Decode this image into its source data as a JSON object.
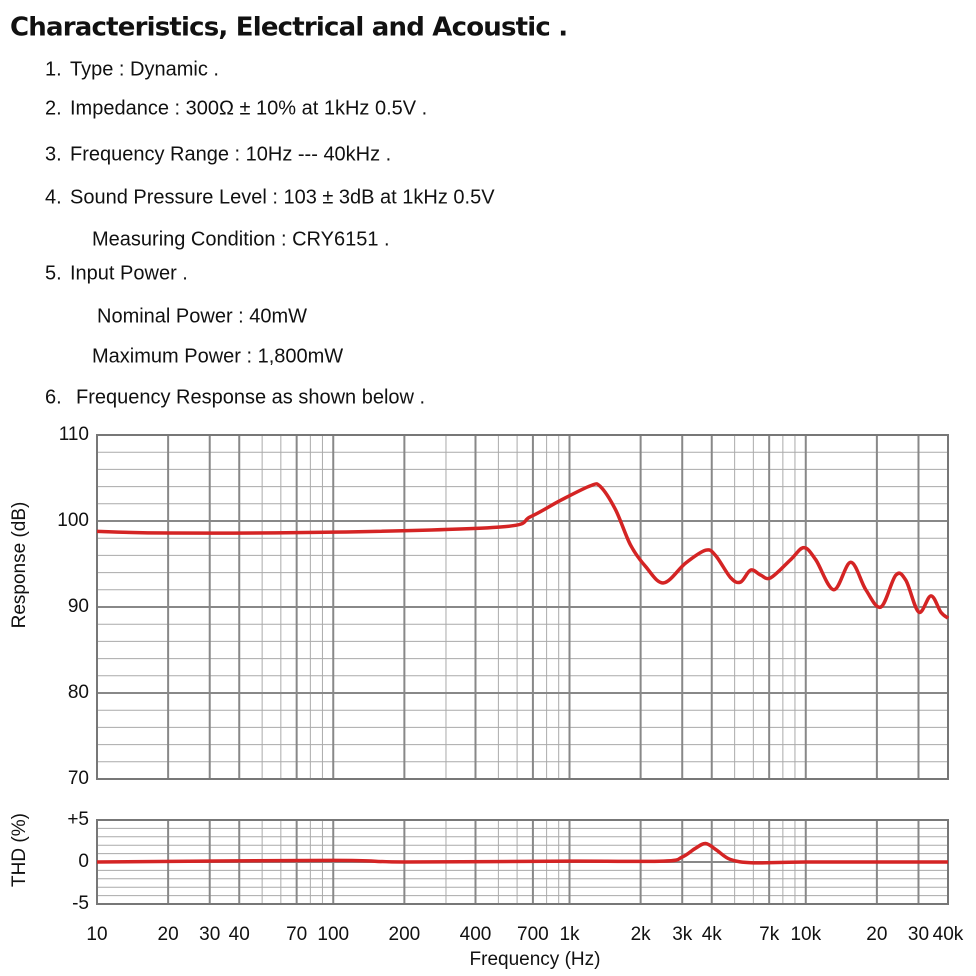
{
  "title": "Characteristics, Electrical and Acoustic .",
  "lines": [
    {
      "number": "1.",
      "text": "Type : Dynamic ."
    },
    {
      "number": "2.",
      "text": "Impedance : 300Ω ± 10% at 1kHz 0.5V ."
    },
    {
      "number": "3.",
      "text": "Frequency Range : 10Hz --- 40kHz ."
    },
    {
      "number": "4.",
      "text": "Sound Pressure Level :  103 ± 3dB at 1kHz 0.5V"
    },
    {
      "text": "Measuring Condition : CRY6151 ."
    },
    {
      "number": "5.",
      "text": "Input Power ."
    },
    {
      "text": "Nominal Power : 40mW"
    },
    {
      "text": "Maximum Power : 1,800mW"
    },
    {
      "number": "6.",
      "text": "Frequency Response as shown below ."
    }
  ],
  "chart_data": [
    {
      "type": "line",
      "ylabel": "Response (dB)",
      "log_x": true,
      "grid": true,
      "xlim": [
        10,
        40000
      ],
      "ylim": [
        70,
        110
      ],
      "xticks": [
        10,
        20,
        30,
        40,
        70,
        100,
        200,
        400,
        700,
        1000,
        2000,
        3000,
        4000,
        7000,
        10000,
        20000,
        30000,
        40000
      ],
      "xminor": [
        10,
        20,
        30,
        40,
        50,
        60,
        70,
        80,
        90,
        100,
        200,
        300,
        400,
        500,
        600,
        700,
        800,
        900,
        1000,
        2000,
        3000,
        4000,
        5000,
        6000,
        7000,
        8000,
        9000,
        10000,
        20000,
        30000,
        40000
      ],
      "yticks": [
        70,
        80,
        90,
        100,
        110
      ],
      "yminor": [
        72,
        74,
        76,
        78,
        82,
        84,
        86,
        88,
        92,
        94,
        96,
        98,
        102,
        104,
        106,
        108
      ],
      "series": [
        {
          "color": "#d42424",
          "x": [
            10,
            20,
            100,
            510,
            684,
            917,
            1228,
            1352,
            1567,
            1813,
            2100,
            2500,
            3100,
            3770,
            4150,
            4810,
            5300,
            5850,
            6450,
            7110,
            8630,
            9810,
            11020,
            13140,
            15500,
            17960,
            20800,
            24040,
            26530,
            30100,
            33880,
            37300,
            40000
          ],
          "values": [
            98.8,
            98.6,
            98.7,
            99.3,
            100.5,
            102.4,
            104.1,
            104.0,
            101.3,
            97.2,
            94.7,
            92.8,
            95.1,
            96.6,
            96.0,
            93.4,
            92.9,
            94.3,
            93.7,
            93.4,
            95.5,
            96.9,
            95.5,
            92.0,
            95.2,
            92.0,
            90.0,
            93.7,
            93.1,
            89.4,
            91.3,
            89.4,
            88.7
          ]
        }
      ]
    },
    {
      "type": "line",
      "ylabel": "THD (%)",
      "xlabel": "Frequency (Hz)",
      "log_x": true,
      "grid": true,
      "xlim": [
        10,
        40000
      ],
      "ylim": [
        -5,
        5
      ],
      "xticks": [
        10,
        20,
        30,
        40,
        70,
        100,
        200,
        400,
        700,
        {
          "value": 1000,
          "label": "1k"
        },
        {
          "value": 2000,
          "label": "2k"
        },
        {
          "value": 3000,
          "label": "3k"
        },
        {
          "value": 4000,
          "label": "4k"
        },
        {
          "value": 7000,
          "label": "7k"
        },
        {
          "value": 10000,
          "label": "10k"
        },
        {
          "value": 20000,
          "label": "20"
        },
        {
          "value": 30000,
          "label": "30"
        },
        {
          "value": 40000,
          "label": "40k"
        }
      ],
      "xminor": [
        10,
        20,
        30,
        40,
        50,
        60,
        70,
        80,
        90,
        100,
        200,
        300,
        400,
        500,
        600,
        700,
        800,
        900,
        1000,
        2000,
        3000,
        4000,
        5000,
        6000,
        7000,
        8000,
        9000,
        10000,
        20000,
        30000,
        40000
      ],
      "yticks": [
        {
          "value": -5,
          "label": "-5"
        },
        0,
        {
          "value": 5,
          "label": "+5"
        }
      ],
      "yminor": [
        -4,
        -3,
        -2,
        -1,
        1,
        2,
        3,
        4
      ],
      "series": [
        {
          "color": "#d42424",
          "x": [
            10,
            100,
            200,
            1000,
            2500,
            3000,
            3400,
            3770,
            4200,
            4800,
            6000,
            10000,
            40000
          ],
          "values": [
            0,
            0.2,
            0,
            0.1,
            0.1,
            0.6,
            1.6,
            2.2,
            1.4,
            0.3,
            -0.1,
            0,
            0
          ]
        }
      ]
    }
  ]
}
